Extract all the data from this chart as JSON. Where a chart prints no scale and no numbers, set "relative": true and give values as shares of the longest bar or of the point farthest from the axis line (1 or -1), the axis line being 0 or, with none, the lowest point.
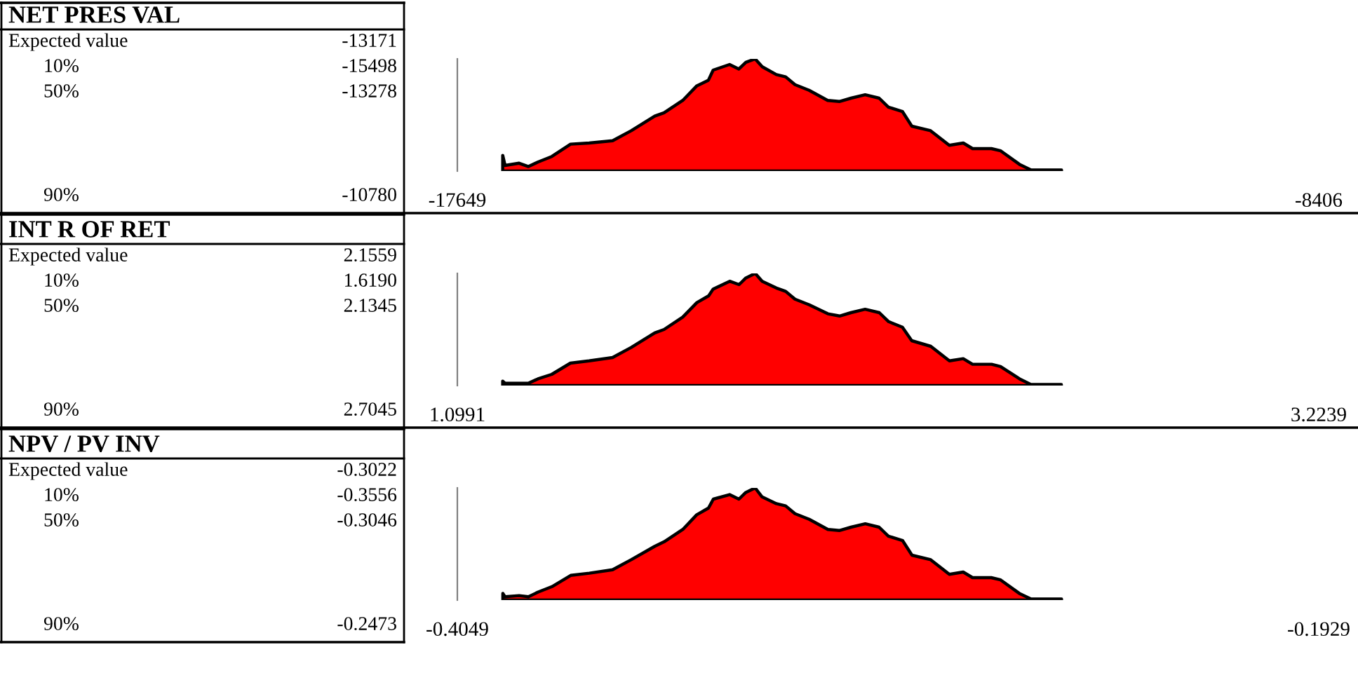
{
  "chart_data": [
    {
      "type": "other",
      "title": "NET PRES VAL",
      "annotations": [
        "Expected value",
        "-13171",
        "10%",
        "-15498",
        "50%",
        "-13278",
        "90%",
        "-10780"
      ]
    },
    {
      "type": "area",
      "relative": true,
      "xlim": [
        -17649,
        -8406
      ],
      "xticks": [
        -17649,
        -8406
      ],
      "color": "#ff0000",
      "x": [
        -17162,
        -17137,
        -16986,
        -16886,
        -16786,
        -16635,
        -16434,
        -16234,
        -15983,
        -15782,
        -15531,
        -15431,
        -15230,
        -15079,
        -14955,
        -14904,
        -14728,
        -14628,
        -14553,
        -14453,
        -14377,
        -14226,
        -14126,
        -14026,
        -13875,
        -13675,
        -13550,
        -13424,
        -13273,
        -13123,
        -13023,
        -12872,
        -12772,
        -12571,
        -12370,
        -12220,
        -12120,
        -11918,
        -11818,
        -11617,
        -11492,
        -11166
      ],
      "values": [
        0.14,
        0.05,
        0.07,
        0.04,
        0.08,
        0.13,
        0.24,
        0.25,
        0.27,
        0.36,
        0.49,
        0.52,
        0.63,
        0.76,
        0.81,
        0.9,
        0.95,
        0.91,
        0.97,
        1.0,
        0.93,
        0.86,
        0.84,
        0.77,
        0.72,
        0.63,
        0.62,
        0.65,
        0.68,
        0.65,
        0.57,
        0.53,
        0.4,
        0.36,
        0.23,
        0.25,
        0.2,
        0.2,
        0.18,
        0.06,
        0.01,
        0.01
      ]
    },
    {
      "type": "other",
      "title": "INT R OF RET",
      "annotations": [
        "Expected value",
        "2.1559",
        "10%",
        "1.6190",
        "50%",
        "2.1345",
        "90%",
        "2.7045"
      ]
    },
    {
      "type": "area",
      "relative": true,
      "xlim": [
        1.0991,
        3.2239
      ],
      "xticks": [
        1.0991,
        3.2239
      ],
      "color": "#ff0000",
      "x": [
        1.211,
        1.217,
        1.251,
        1.274,
        1.298,
        1.332,
        1.378,
        1.424,
        1.482,
        1.528,
        1.586,
        1.609,
        1.655,
        1.69,
        1.719,
        1.73,
        1.771,
        1.794,
        1.811,
        1.834,
        1.851,
        1.886,
        1.909,
        1.932,
        1.967,
        2.013,
        2.042,
        2.07,
        2.105,
        2.14,
        2.163,
        2.197,
        2.22,
        2.267,
        2.313,
        2.347,
        2.37,
        2.417,
        2.439,
        2.486,
        2.514,
        2.589
      ],
      "values": [
        0.04,
        0.02,
        0.02,
        0.02,
        0.06,
        0.1,
        0.2,
        0.22,
        0.25,
        0.34,
        0.47,
        0.5,
        0.61,
        0.74,
        0.8,
        0.86,
        0.93,
        0.9,
        0.96,
        1.0,
        0.93,
        0.87,
        0.84,
        0.77,
        0.72,
        0.64,
        0.62,
        0.65,
        0.68,
        0.65,
        0.57,
        0.52,
        0.4,
        0.35,
        0.22,
        0.24,
        0.19,
        0.19,
        0.17,
        0.06,
        0.01,
        0.01
      ]
    },
    {
      "type": "other",
      "title": "NPV / PV INV",
      "annotations": [
        "Expected value",
        "-0.3022",
        "10%",
        "-0.3556",
        "50%",
        "-0.3046",
        "90%",
        "-0.2473"
      ]
    },
    {
      "type": "area",
      "relative": true,
      "xlim": [
        -0.4049,
        -0.1929
      ],
      "xticks": [
        -0.4049,
        -0.1929
      ],
      "color": "#ff0000",
      "x": [
        -0.3937,
        -0.3932,
        -0.3897,
        -0.3874,
        -0.3851,
        -0.3816,
        -0.377,
        -0.3724,
        -0.3667,
        -0.3621,
        -0.3563,
        -0.354,
        -0.3494,
        -0.346,
        -0.3431,
        -0.3419,
        -0.3379,
        -0.3356,
        -0.3339,
        -0.3316,
        -0.3299,
        -0.3264,
        -0.3241,
        -0.3218,
        -0.3183,
        -0.3137,
        -0.3109,
        -0.308,
        -0.3045,
        -0.3011,
        -0.2988,
        -0.2953,
        -0.293,
        -0.2884,
        -0.2838,
        -0.2804,
        -0.2781,
        -0.2735,
        -0.2712,
        -0.2666,
        -0.2637,
        -0.2562
      ],
      "values": [
        0.06,
        0.03,
        0.04,
        0.03,
        0.07,
        0.12,
        0.22,
        0.24,
        0.27,
        0.36,
        0.48,
        0.52,
        0.63,
        0.76,
        0.82,
        0.9,
        0.94,
        0.9,
        0.96,
        1.0,
        0.92,
        0.86,
        0.84,
        0.77,
        0.72,
        0.63,
        0.62,
        0.65,
        0.68,
        0.65,
        0.57,
        0.53,
        0.4,
        0.36,
        0.23,
        0.25,
        0.2,
        0.2,
        0.18,
        0.06,
        0.01,
        0.01
      ]
    }
  ]
}
